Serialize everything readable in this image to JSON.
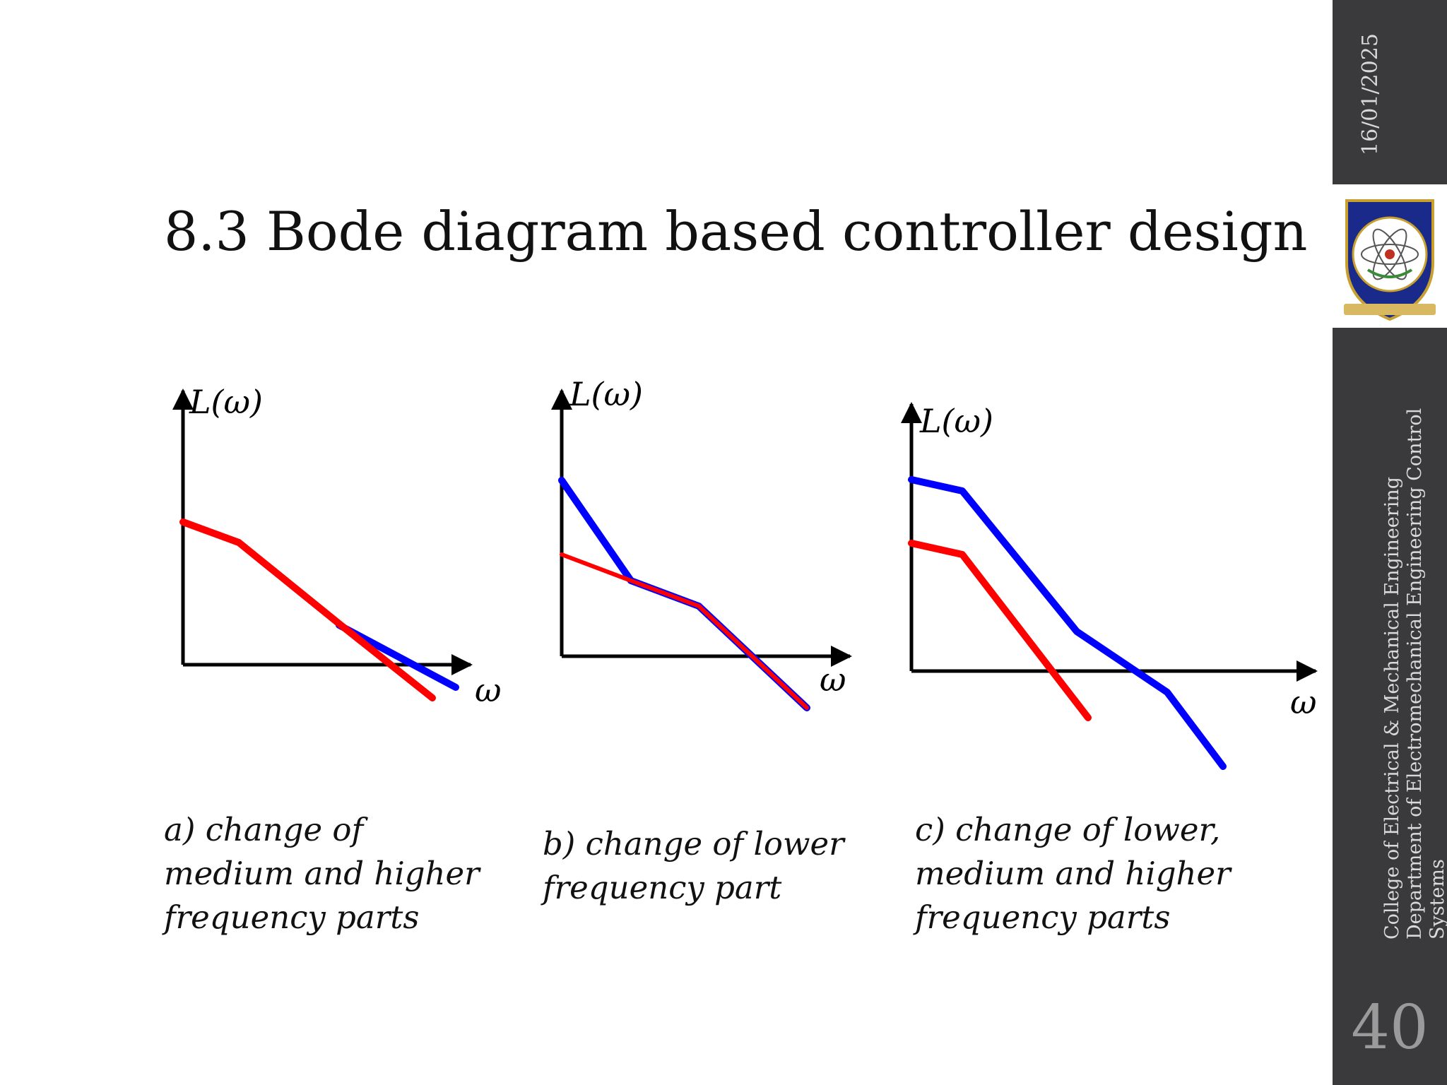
{
  "slide": {
    "title": "8.3 Bode diagram based controller design",
    "date": "16/01/2025",
    "department": "College of Electrical & Mechanical Engineering  Department of Electromechanical Engineering  Control Systems",
    "slide_number": "40"
  },
  "colors": {
    "sidebar": "#3a3a3c",
    "red": "#ff0000",
    "blue": "#0000ff"
  },
  "diagrams": [
    {
      "id": "a",
      "y_label": "L(ω)",
      "x_label": "ω",
      "caption_lines": [
        "a) change of",
        "medium and higher",
        "frequency parts"
      ]
    },
    {
      "id": "b",
      "y_label": "L(ω)",
      "x_label": "ω",
      "caption_lines": [
        "b) change of lower",
        "frequency part"
      ]
    },
    {
      "id": "c",
      "y_label": "L(ω)",
      "x_label": "ω",
      "caption_lines": [
        "c) change of lower,",
        "medium and higher",
        "frequency parts"
      ]
    }
  ]
}
